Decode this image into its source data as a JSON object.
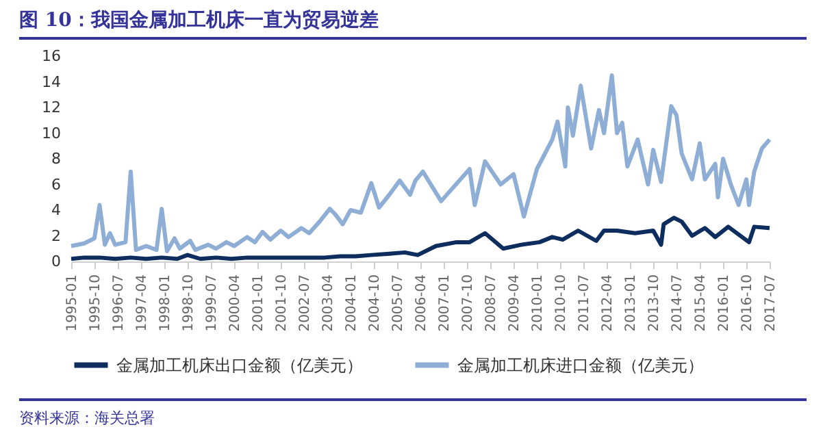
{
  "chart_data": {
    "type": "line",
    "title": "图 10：我国金属加工机床一直为贸易逆差",
    "annotations": [
      "资料来源：海关总署"
    ],
    "series": [
      {
        "name": "金属加工机床出口金额（亿美元）",
        "color": "#0c2d5e",
        "x": [
          "1995-01",
          "1995-06",
          "1995-12",
          "1996-06",
          "1996-12",
          "1997-06",
          "1997-12",
          "1998-06",
          "1998-10",
          "1999-03",
          "1999-09",
          "2000-03",
          "2000-09",
          "2001-03",
          "2001-09",
          "2002-03",
          "2002-09",
          "2003-03",
          "2003-09",
          "2004-03",
          "2004-09",
          "2005-04",
          "2005-10",
          "2006-03",
          "2006-10",
          "2007-06",
          "2007-11",
          "2008-05",
          "2008-12",
          "2009-07",
          "2010-02",
          "2010-07",
          "2010-11",
          "2011-05",
          "2011-12",
          "2012-03",
          "2012-08",
          "2013-03",
          "2013-10",
          "2014-01",
          "2014-02",
          "2014-06",
          "2014-09",
          "2015-01",
          "2015-06",
          "2015-10",
          "2016-03",
          "2016-11",
          "2017-01",
          "2017-07"
        ],
        "values": [
          0.2,
          0.3,
          0.3,
          0.2,
          0.3,
          0.2,
          0.3,
          0.2,
          0.5,
          0.2,
          0.3,
          0.2,
          0.3,
          0.3,
          0.3,
          0.3,
          0.3,
          0.3,
          0.4,
          0.4,
          0.5,
          0.6,
          0.7,
          0.5,
          1.2,
          1.5,
          1.5,
          2.2,
          1.0,
          1.3,
          1.5,
          1.9,
          1.7,
          2.4,
          1.6,
          2.4,
          2.4,
          2.2,
          2.4,
          1.3,
          2.9,
          3.4,
          3.1,
          2.0,
          2.6,
          1.9,
          2.7,
          1.5,
          2.7,
          2.6
        ]
      },
      {
        "name": "金属加工机床进口金额（亿美元）",
        "color": "#8faed6",
        "x": [
          "1995-01",
          "1995-06",
          "1995-10",
          "1995-12",
          "1996-02",
          "1996-04",
          "1996-06",
          "1996-10",
          "1996-12",
          "1997-02",
          "1997-06",
          "1997-10",
          "1997-12",
          "1998-02",
          "1998-05",
          "1998-07",
          "1998-11",
          "1999-01",
          "1999-06",
          "1999-09",
          "2000-01",
          "2000-04",
          "2000-09",
          "2000-12",
          "2001-03",
          "2001-06",
          "2001-10",
          "2002-01",
          "2002-06",
          "2002-09",
          "2003-01",
          "2003-05",
          "2003-07",
          "2003-10",
          "2004-01",
          "2004-05",
          "2004-09",
          "2004-12",
          "2005-04",
          "2005-08",
          "2005-12",
          "2006-02",
          "2006-05",
          "2006-12",
          "2007-11",
          "2008-01",
          "2008-05",
          "2008-11",
          "2009-04",
          "2009-08",
          "2010-01",
          "2010-07",
          "2010-09",
          "2010-12",
          "2011-01",
          "2011-03",
          "2011-06",
          "2011-10",
          "2012-01",
          "2012-03",
          "2012-06",
          "2012-08",
          "2012-10",
          "2012-12",
          "2013-04",
          "2013-08",
          "2013-10",
          "2014-01",
          "2014-05",
          "2014-07",
          "2014-09",
          "2015-01",
          "2015-04",
          "2015-06",
          "2015-10",
          "2015-11",
          "2016-01",
          "2016-04",
          "2016-07",
          "2016-10",
          "2016-11",
          "2017-01",
          "2017-04",
          "2017-07"
        ],
        "values": [
          1.2,
          1.4,
          1.8,
          4.4,
          1.3,
          2.2,
          1.3,
          1.5,
          7.0,
          0.9,
          1.2,
          0.9,
          4.1,
          0.8,
          1.8,
          1.0,
          1.6,
          0.9,
          1.3,
          1.0,
          1.5,
          1.2,
          1.9,
          1.5,
          2.3,
          1.7,
          2.4,
          1.9,
          2.6,
          2.2,
          3.1,
          4.1,
          3.7,
          2.9,
          4.0,
          3.8,
          6.1,
          4.2,
          5.2,
          6.3,
          5.2,
          6.3,
          7.0,
          4.7,
          7.2,
          4.4,
          7.8,
          6.0,
          6.8,
          3.5,
          7.2,
          9.5,
          10.9,
          7.4,
          12.0,
          9.8,
          13.7,
          8.8,
          11.8,
          10.0,
          14.5,
          10.0,
          10.8,
          7.4,
          9.5,
          6.0,
          8.7,
          6.2,
          12.1,
          11.4,
          8.4,
          6.4,
          9.2,
          6.4,
          7.6,
          5.0,
          8.0,
          6.0,
          4.4,
          6.4,
          4.4,
          7.0,
          8.8,
          9.5
        ]
      }
    ],
    "xlim": [
      "1995-01",
      "2017-07"
    ],
    "xticks": [
      "1995-01",
      "1995-10",
      "1996-07",
      "1997-04",
      "1998-01",
      "1998-10",
      "1999-07",
      "2000-04",
      "2001-01",
      "2001-10",
      "2002-07",
      "2003-04",
      "2004-01",
      "2004-10",
      "2005-07",
      "2006-04",
      "2007-01",
      "2007-10",
      "2008-07",
      "2009-04",
      "2010-01",
      "2010-10",
      "2011-07",
      "2012-04",
      "2013-01",
      "2013-10",
      "2014-07",
      "2015-04",
      "2016-01",
      "2016-10",
      "2017-07"
    ],
    "ylim": [
      0,
      16
    ],
    "yticks": [
      0,
      2,
      4,
      6,
      8,
      10,
      12,
      14,
      16
    ],
    "grid": false,
    "legend": "bottom",
    "marker": "none",
    "line_style": "solid"
  }
}
